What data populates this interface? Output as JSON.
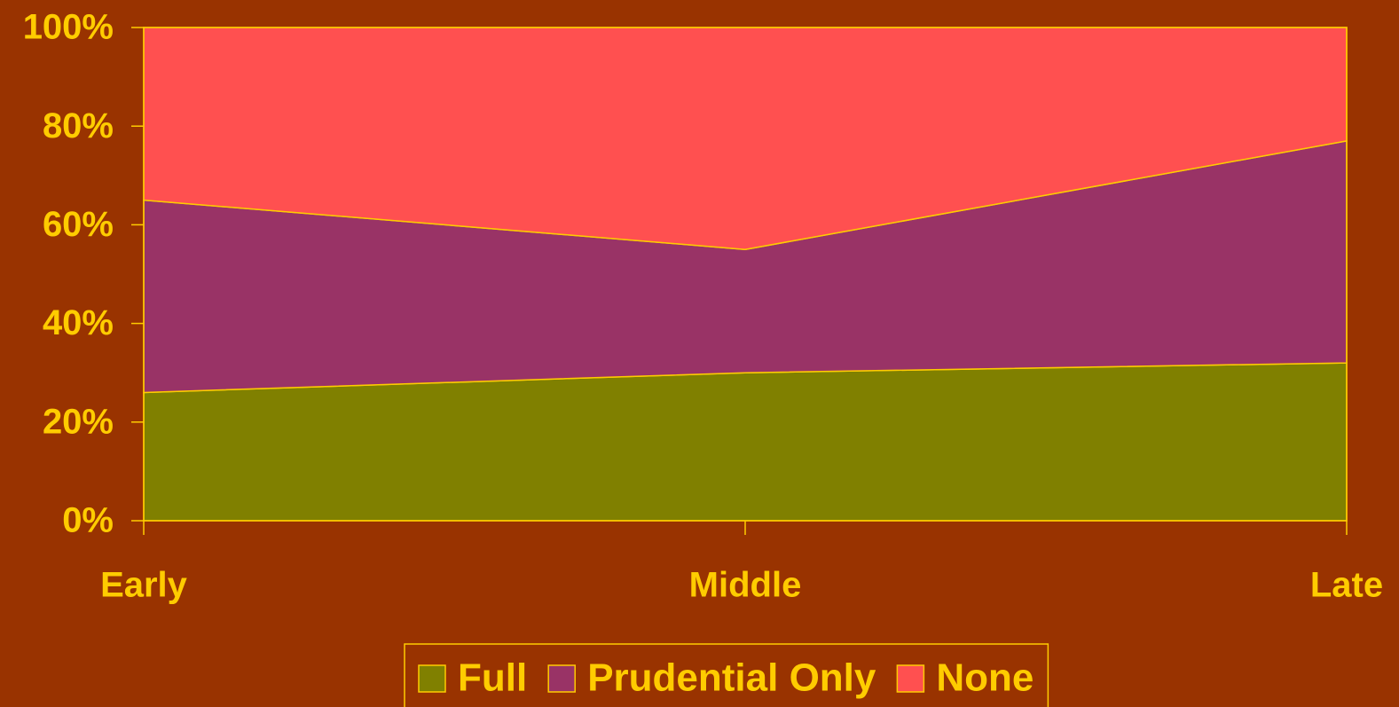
{
  "chart_data": {
    "type": "stacked_area",
    "categories": [
      "Early",
      "Middle",
      "Late"
    ],
    "series": [
      {
        "name": "Full",
        "color": "#808000",
        "values": [
          26,
          30,
          32
        ]
      },
      {
        "name": "Prudential Only",
        "color": "#993366",
        "values": [
          39,
          25,
          45
        ]
      },
      {
        "name": "None",
        "color": "#ff5050",
        "values": [
          35,
          45,
          23
        ]
      }
    ],
    "ylim": [
      0,
      100
    ],
    "yticks": [
      {
        "value": 0,
        "label": "0%"
      },
      {
        "value": 20,
        "label": "20%"
      },
      {
        "value": 40,
        "label": "40%"
      },
      {
        "value": 60,
        "label": "60%"
      },
      {
        "value": 80,
        "label": "80%"
      },
      {
        "value": 100,
        "label": "100%"
      }
    ],
    "legend": "bottom"
  }
}
